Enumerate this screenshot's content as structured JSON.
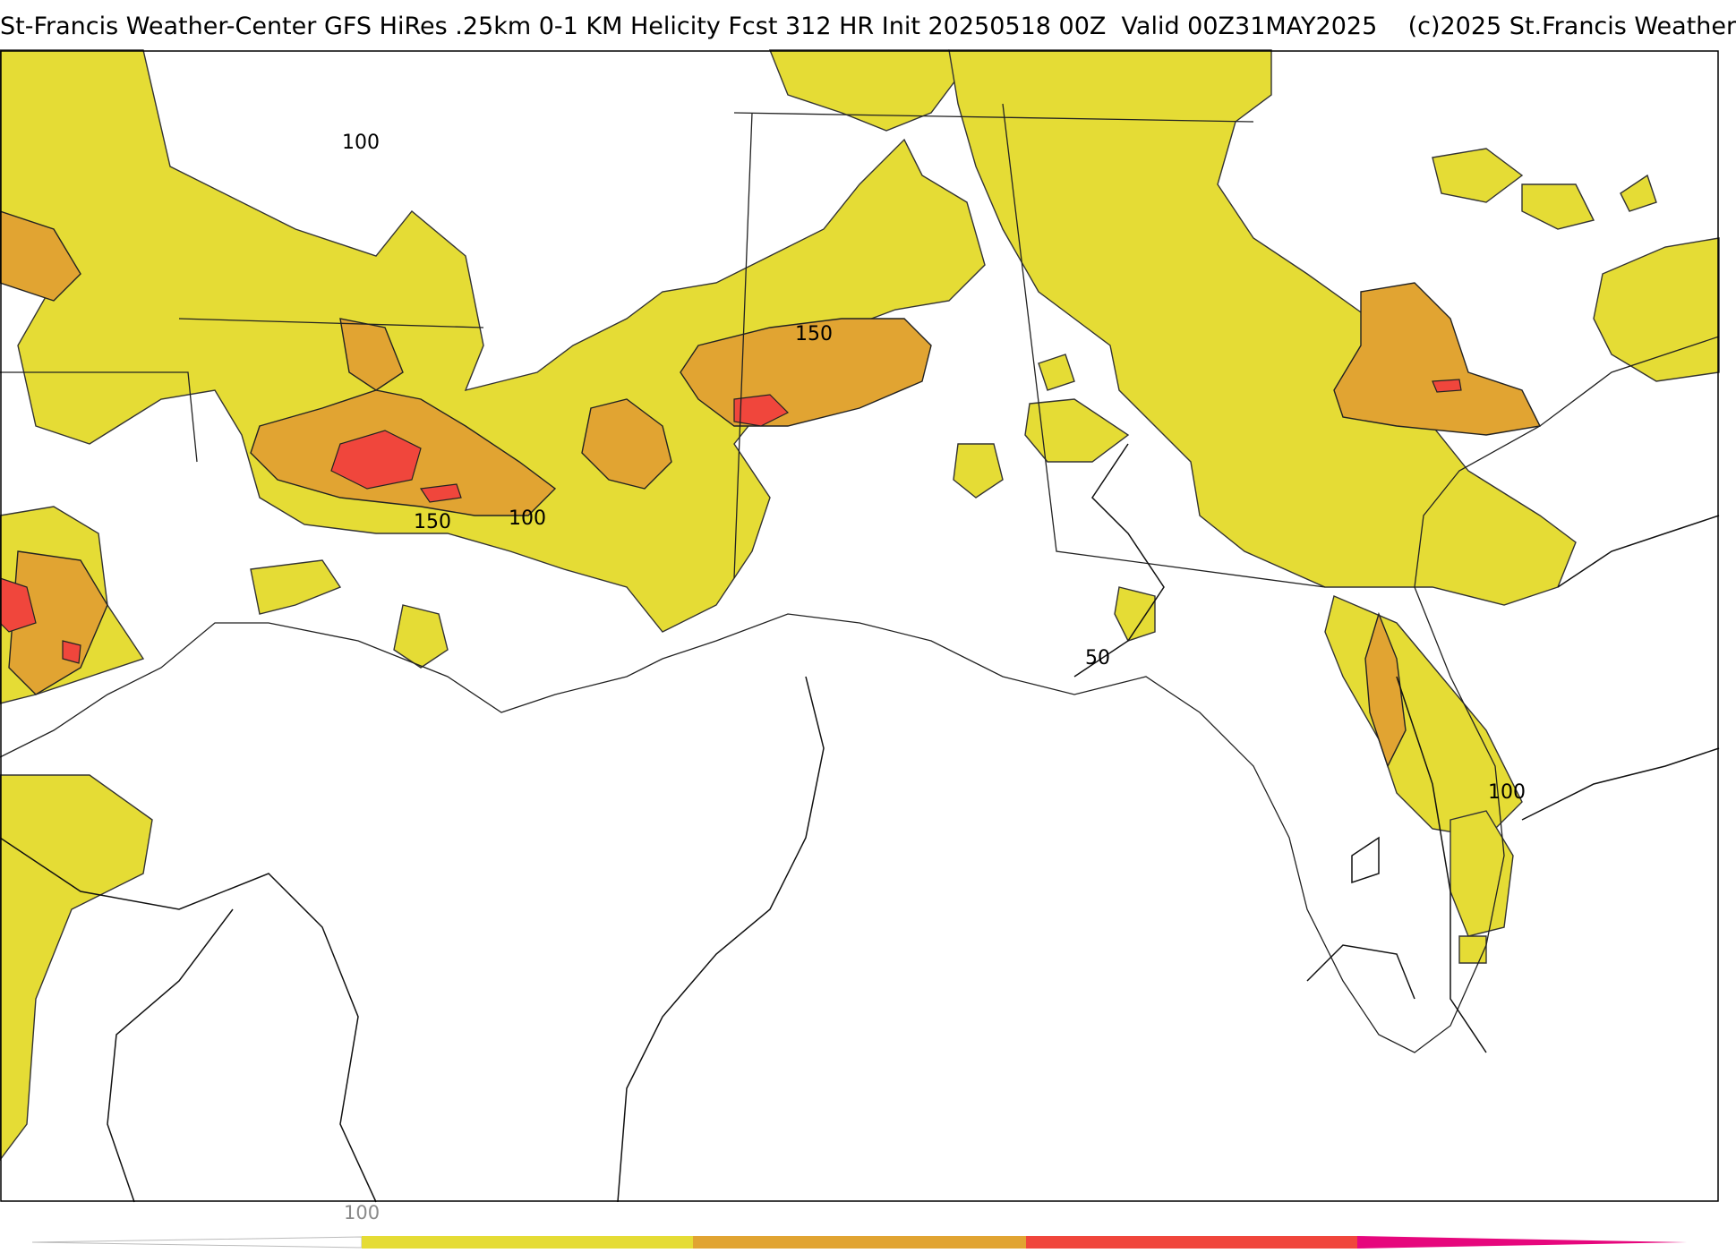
{
  "title": "St-Francis Weather-Center GFS HiRes .25km 0-1 KM Helicity Fcst 312 HR Init 20250518 00Z  Valid 00Z31MAY2025    (c)2025 St.Francis Weather",
  "map": {
    "contour_labels": [
      "100",
      "150",
      "150",
      "100",
      "50",
      "100"
    ]
  },
  "colorbar": {
    "tick_label": "100",
    "colors": [
      "#e5dc35",
      "#e1a432",
      "#f0463c",
      "#e6077d"
    ]
  }
}
